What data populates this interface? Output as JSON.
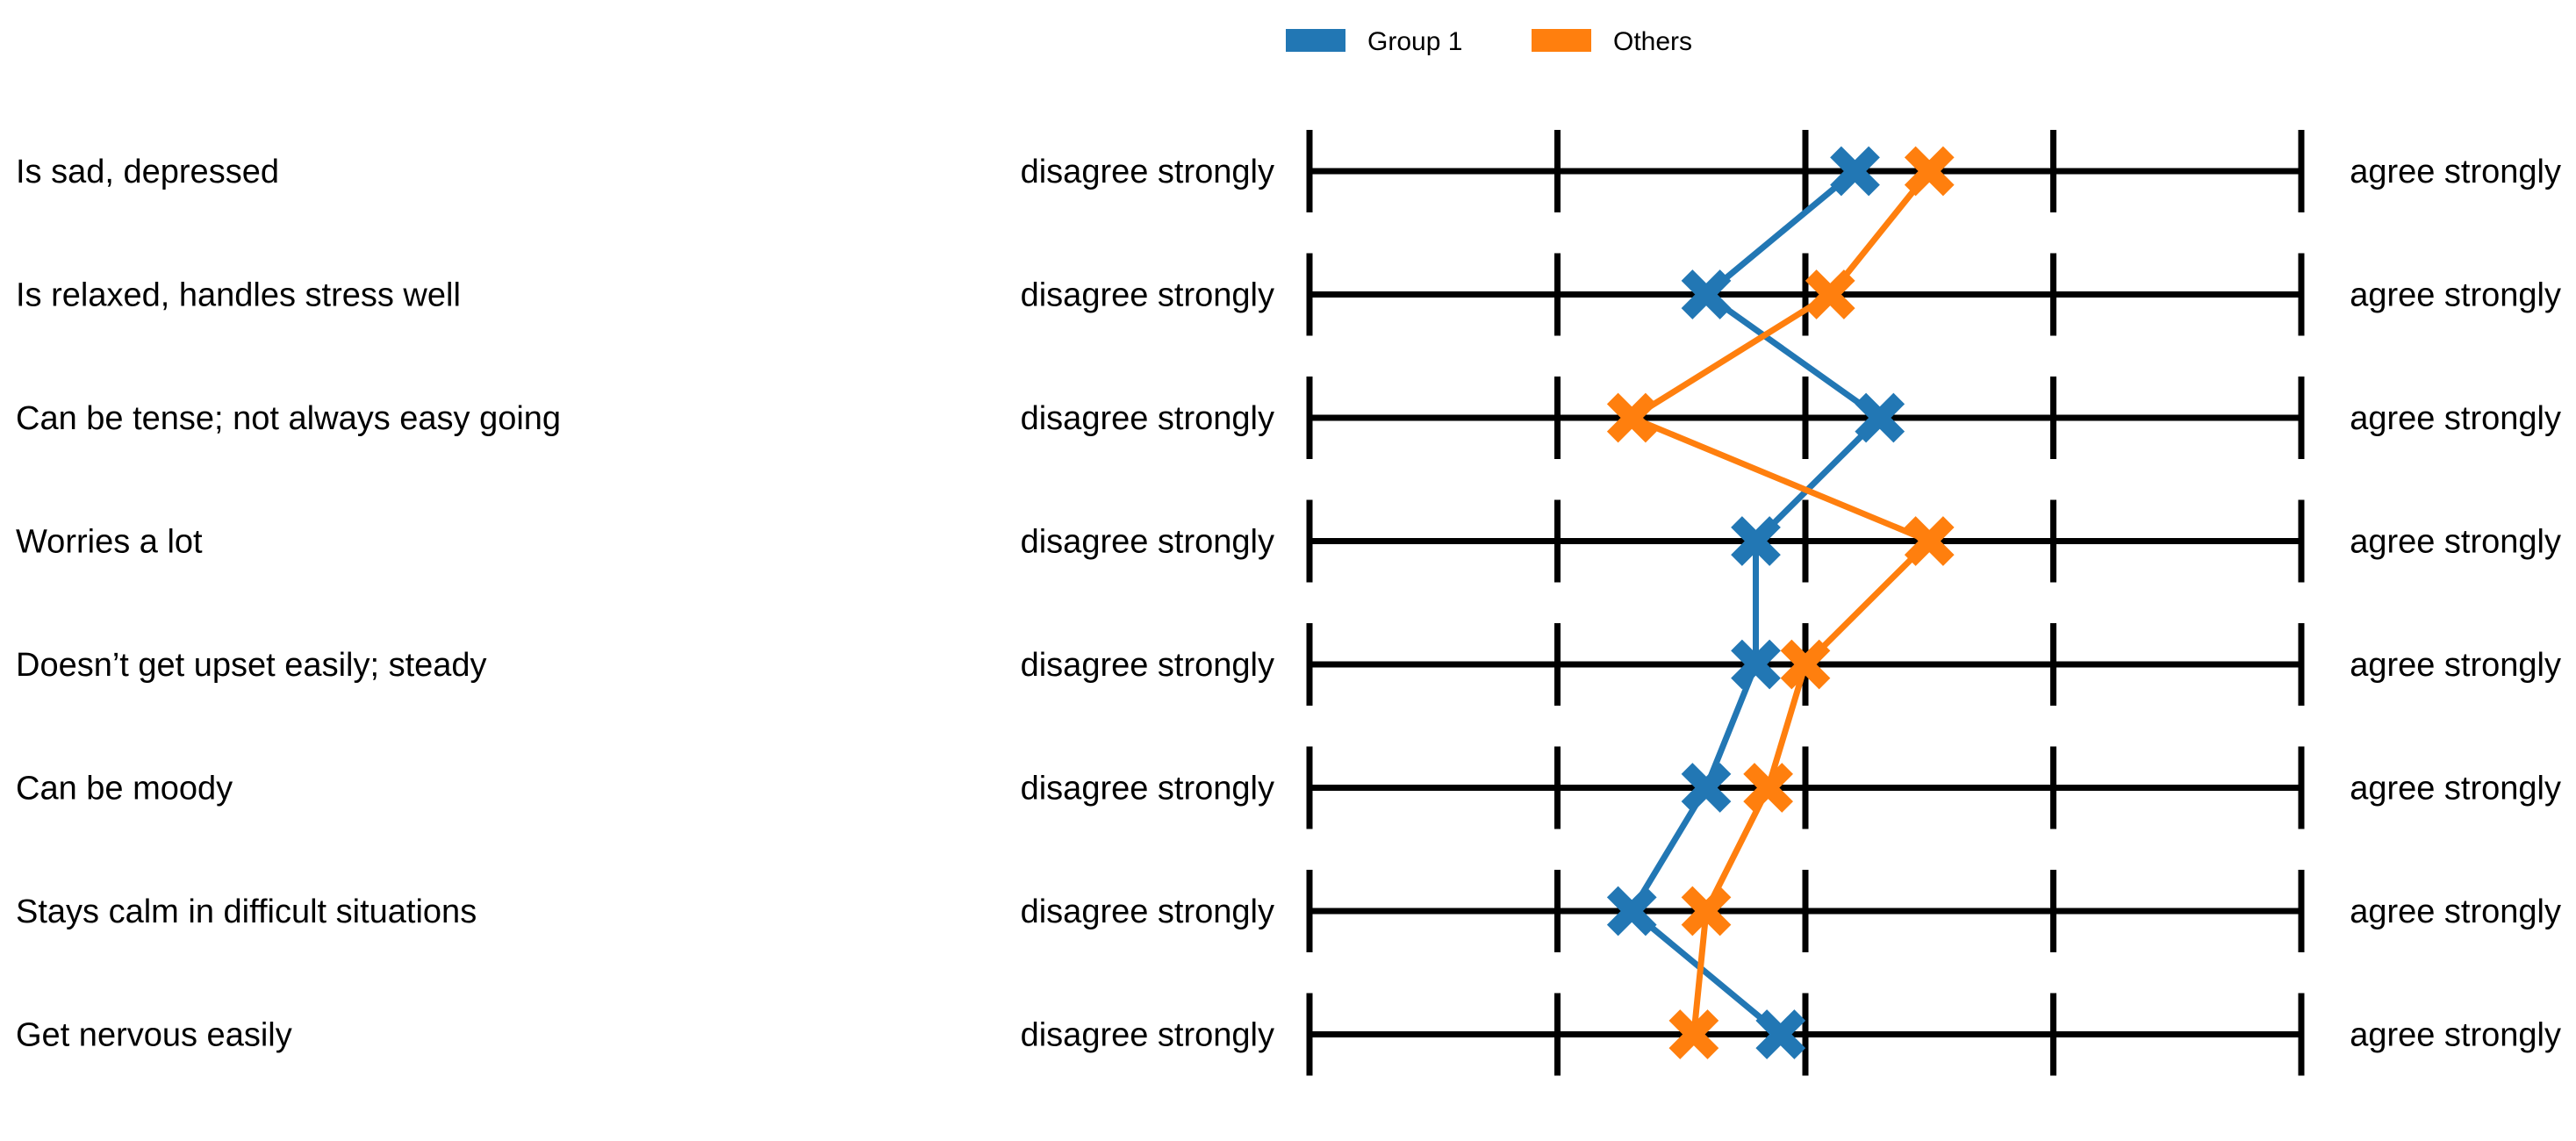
{
  "chart_data": {
    "type": "line",
    "scale": {
      "points": 5,
      "min": 1,
      "max": 5,
      "left_anchor": "disagree strongly",
      "right_anchor": "agree strongly"
    },
    "items": [
      "Is sad, depressed",
      "Is relaxed, handles stress well",
      "Can be tense; not always easy going",
      "Worries a lot",
      "Doesn’t get upset easily; steady",
      "Can be moody",
      "Stays calm in difficult situations",
      "Get nervous easily"
    ],
    "series": [
      {
        "name": "Group 1",
        "color": "#2277b4",
        "marker": "x",
        "values": [
          3.2,
          2.6,
          3.3,
          2.8,
          2.8,
          2.6,
          2.3,
          2.9
        ]
      },
      {
        "name": "Others",
        "color": "#ff7f0e",
        "marker": "x",
        "values": [
          3.5,
          3.1,
          2.3,
          3.5,
          3.0,
          2.85,
          2.6,
          2.55
        ]
      }
    ],
    "legend_position": "top-center",
    "grid": false
  }
}
